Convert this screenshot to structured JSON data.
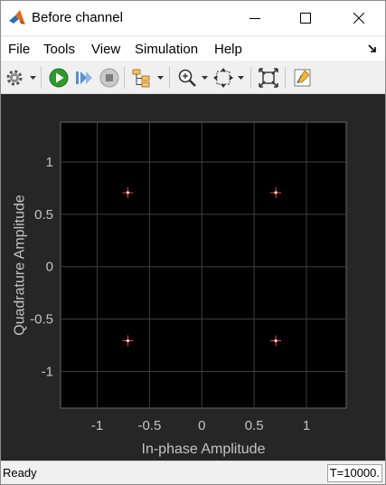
{
  "window": {
    "title": "Before channel",
    "icon": "matlab-icon"
  },
  "menu": {
    "items": [
      "File",
      "Tools",
      "View",
      "Simulation",
      "Help"
    ]
  },
  "toolbar": {
    "icons": [
      "gear-icon",
      "run-icon",
      "step-forward-icon",
      "stop-icon",
      "signal-hierarchy-icon",
      "zoom-in-icon",
      "fit-to-view-icon",
      "autoscale-icon",
      "highlight-icon"
    ]
  },
  "colors": {
    "figure_bg": "#262626",
    "axes_bg": "#000000",
    "marker": "#ff3b2f",
    "tick_text": "#c4c4c4"
  },
  "chart_data": {
    "type": "scatter",
    "xlabel": "In-phase Amplitude",
    "ylabel": "Quadrature Amplitude",
    "xlim": [
      -1.35,
      1.38
    ],
    "ylim": [
      -1.35,
      1.38
    ],
    "xticks": [
      -1,
      -0.5,
      0,
      0.5,
      1
    ],
    "yticks": [
      1,
      0.5,
      0,
      -0.5,
      -1
    ],
    "xtick_labels": [
      "-1",
      "-0.5",
      "0",
      "0.5",
      "1"
    ],
    "ytick_labels": [
      "1",
      "0.5",
      "0",
      "-0.5",
      "-1"
    ],
    "grid": true,
    "series": [
      {
        "points": [
          [
            -0.707,
            0.707
          ],
          [
            0.707,
            0.707
          ],
          [
            -0.707,
            -0.707
          ],
          [
            0.707,
            -0.707
          ]
        ]
      }
    ]
  },
  "status": {
    "text": "Ready",
    "time": "T=10000."
  }
}
